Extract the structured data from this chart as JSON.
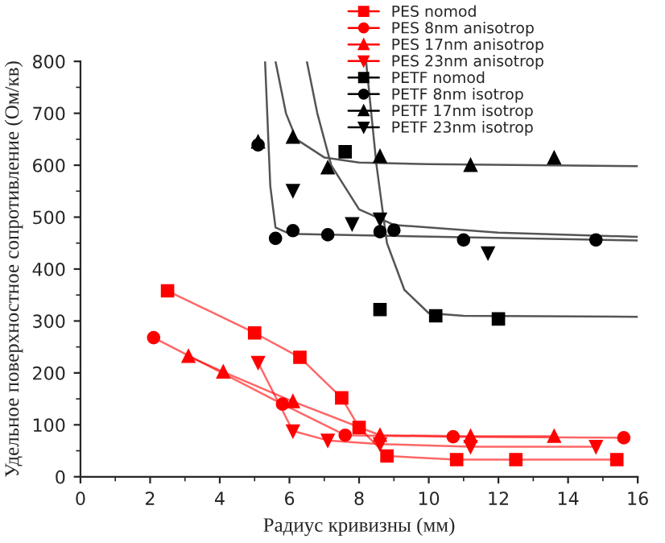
{
  "chart_data": {
    "type": "line",
    "xlabel": "Радиус кривизны (мм)",
    "ylabel": "Удельное поверхностное сопротивление (Ом/кв)",
    "xlim": [
      0,
      16
    ],
    "xticks": [
      0,
      2,
      4,
      6,
      8,
      10,
      12,
      14,
      16
    ],
    "ylim": [
      0,
      800
    ],
    "yticks": [
      0,
      100,
      200,
      300,
      400,
      500,
      600,
      700,
      800
    ],
    "grid": false,
    "legend": "top right",
    "series": [
      {
        "name": "PES nomod",
        "marker": "square",
        "color": "#ff0000",
        "x": [
          2.5,
          5.0,
          6.3,
          7.5,
          8.0,
          8.8,
          10.8,
          12.5,
          15.4
        ],
        "values": [
          358,
          277,
          230,
          152,
          95,
          40,
          33,
          33,
          33
        ]
      },
      {
        "name": "PES 8nm anisotrop",
        "marker": "circle",
        "color": "#ff0000",
        "x": [
          2.1,
          5.8,
          7.6,
          10.7,
          15.6
        ],
        "values": [
          268,
          140,
          80,
          77,
          75
        ]
      },
      {
        "name": "PES 17nm anisotrop",
        "marker": "triangle",
        "color": "#ff0000",
        "x": [
          3.1,
          4.1,
          6.1,
          8.6,
          11.2,
          13.6
        ],
        "values": [
          232,
          202,
          145,
          80,
          78,
          78
        ]
      },
      {
        "name": "PES 23nm anisotrop",
        "marker": "triangle_down",
        "color": "#ff0000",
        "x": [
          5.1,
          6.1,
          7.1,
          8.6,
          11.2,
          14.8
        ],
        "values": [
          220,
          88,
          70,
          63,
          58,
          58
        ]
      },
      {
        "name": "PETF nomod",
        "type": "scatter",
        "marker": "square",
        "color": "#000000",
        "x": [
          7.6,
          8.6,
          10.2,
          12.0
        ],
        "values": [
          626,
          322,
          310,
          304
        ]
      },
      {
        "name": "PETF 8nm isotrop",
        "type": "scatter",
        "marker": "circle",
        "color": "#000000",
        "x": [
          5.1,
          5.6,
          6.1,
          7.1,
          8.6,
          9.0,
          11.0,
          14.8
        ],
        "values": [
          639,
          459,
          474,
          466,
          472,
          475,
          456,
          456
        ]
      },
      {
        "name": "PETF 17nm isotrop",
        "type": "scatter",
        "marker": "triangle",
        "color": "#000000",
        "x": [
          5.1,
          6.1,
          7.1,
          8.6,
          11.2,
          13.6
        ],
        "values": [
          645,
          654,
          595,
          617,
          600,
          614
        ]
      },
      {
        "name": "PETF 23nm isotrop",
        "type": "scatter",
        "marker": "triangle_down",
        "color": "#000000",
        "x": [
          6.1,
          7.8,
          8.6,
          11.7
        ],
        "values": [
          551,
          487,
          496,
          431
        ]
      },
      {
        "type": "line",
        "marker": "none",
        "color": "#555555",
        "x": [
          8.2,
          8.5,
          8.8,
          9.3,
          10.0,
          11.0,
          16.0
        ],
        "values": [
          800,
          600,
          450,
          360,
          315,
          310,
          308
        ]
      },
      {
        "type": "line",
        "marker": "none",
        "color": "#555555",
        "x": [
          5.3,
          5.45,
          5.6,
          6.0,
          8.0,
          16.0
        ],
        "values": [
          800,
          560,
          480,
          468,
          465,
          455
        ]
      },
      {
        "type": "line",
        "marker": "none",
        "color": "#555555",
        "x": [
          5.6,
          5.9,
          6.2,
          7.0,
          8.0,
          10.0,
          16.0
        ],
        "values": [
          800,
          700,
          650,
          615,
          605,
          602,
          598
        ]
      },
      {
        "type": "line",
        "marker": "none",
        "color": "#555555",
        "x": [
          6.5,
          6.8,
          7.2,
          8.0,
          9.0,
          12.0,
          16.0
        ],
        "values": [
          800,
          700,
          600,
          515,
          485,
          470,
          462
        ]
      }
    ]
  }
}
